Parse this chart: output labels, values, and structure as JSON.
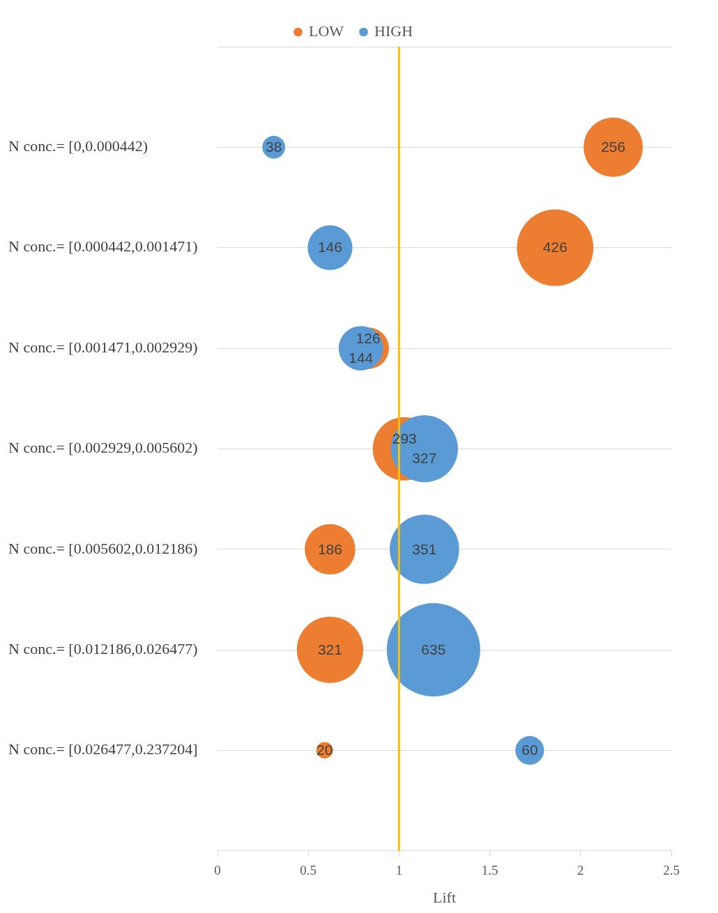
{
  "chart_data": {
    "type": "bubble",
    "orientation": "horizontal",
    "xlabel": "Lift",
    "categories": [
      "N conc.= [0,0.000442)",
      "N conc.= [0.000442,0.001471)",
      "N conc.= [0.001471,0.002929)",
      "N conc.= [0.002929,0.005602)",
      "N conc.= [0.005602,0.012186)",
      "N conc.= [0.012186,0.026477)",
      "N conc.= [0.026477,0.237204]"
    ],
    "series": [
      {
        "name": "LOW",
        "color": "#ed7d31",
        "values": [
          2.18,
          1.86,
          0.83,
          1.03,
          0.62,
          0.62,
          0.59
        ],
        "sizes": [
          256,
          426,
          126,
          293,
          186,
          321,
          20
        ],
        "value_labels": [
          "256",
          "426",
          "126",
          "293",
          "186",
          "321",
          "20"
        ]
      },
      {
        "name": "HIGH",
        "color": "#5b9bd5",
        "values": [
          0.31,
          0.62,
          0.79,
          1.14,
          1.14,
          1.19,
          1.72
        ],
        "sizes": [
          38,
          146,
          144,
          327,
          351,
          635,
          60
        ],
        "value_labels": [
          "38",
          "146",
          "144",
          "327",
          "351",
          "635",
          "60"
        ]
      }
    ],
    "xlim": [
      0,
      2.5
    ],
    "xticks": [
      0,
      0.5,
      1,
      1.5,
      2,
      2.5
    ],
    "ref_lines": [
      {
        "axis": "x",
        "value": 1,
        "color": "#ffc000"
      }
    ],
    "grid": "y",
    "legend": "top"
  }
}
